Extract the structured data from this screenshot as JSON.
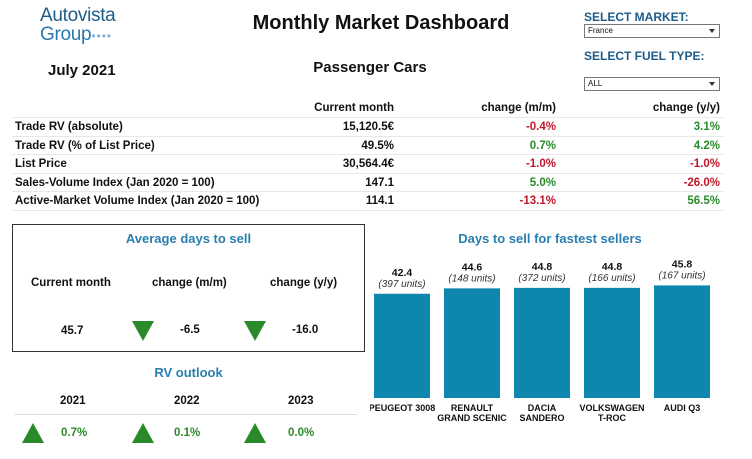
{
  "logo": {
    "line1": "Autovista",
    "line2": "Group",
    "dots": "••••"
  },
  "header": {
    "title": "Monthly Market Dashboard",
    "date": "July 2021",
    "segment": "Passenger Cars"
  },
  "selectors": {
    "market_label": "SELECT MARKET:",
    "market_value": "France",
    "fuel_label": "SELECT FUEL TYPE:",
    "fuel_value": "ALL"
  },
  "table": {
    "headers": [
      "",
      "Current month",
      "change (m/m)",
      "change (y/y)"
    ],
    "rows": [
      {
        "label": "Trade RV (absolute)",
        "current": "15,120.5€",
        "mm": "-0.4%",
        "yy": "3.1%"
      },
      {
        "label": "Trade RV (% of List Price)",
        "current": "49.5%",
        "mm": "0.7%",
        "yy": "4.2%"
      },
      {
        "label": "List Price",
        "current": "30,564.4€",
        "mm": "-1.0%",
        "yy": "-1.0%"
      },
      {
        "label": "Sales-Volume Index (Jan 2020 = 100)",
        "current": "147.1",
        "mm": "5.0%",
        "yy": "-26.0%"
      },
      {
        "label": "Active-Market Volume Index (Jan 2020 = 100)",
        "current": "114.1",
        "mm": "-13.1%",
        "yy": "56.5%"
      }
    ]
  },
  "avg_days": {
    "title": "Average days to sell",
    "headers": [
      "Current month",
      "change (m/m)",
      "change (y/y)"
    ],
    "current": "45.7",
    "mm": "-6.5",
    "yy": "-16.0"
  },
  "rv_outlook": {
    "title": "RV outlook",
    "years": [
      "2021",
      "2022",
      "2023"
    ],
    "values": [
      "0.7%",
      "0.1%",
      "0.0%"
    ]
  },
  "colors": {
    "accent": "#2a7fb0",
    "bar": "#0e86ad",
    "positive": "#2a8a2a",
    "negative": "#c0182a"
  },
  "chart_data": {
    "type": "bar",
    "title": "Days to sell for fastest sellers",
    "categories": [
      [
        "PEUGEOT 3008"
      ],
      [
        "RENAULT",
        "GRAND SCENIC"
      ],
      [
        "DACIA",
        "SANDERO"
      ],
      [
        "VOLKSWAGEN",
        "T-ROC"
      ],
      [
        "AUDI Q3"
      ]
    ],
    "values": [
      42.4,
      44.6,
      44.8,
      44.8,
      45.8
    ],
    "value_labels": [
      "42.4",
      "44.6",
      "44.8",
      "44.8",
      "45.8"
    ],
    "unit_labels": [
      "(397  units)",
      "(148  units)",
      "(372  units)",
      "(166  units)",
      "(167  units)"
    ],
    "ylim": [
      0,
      50
    ]
  }
}
